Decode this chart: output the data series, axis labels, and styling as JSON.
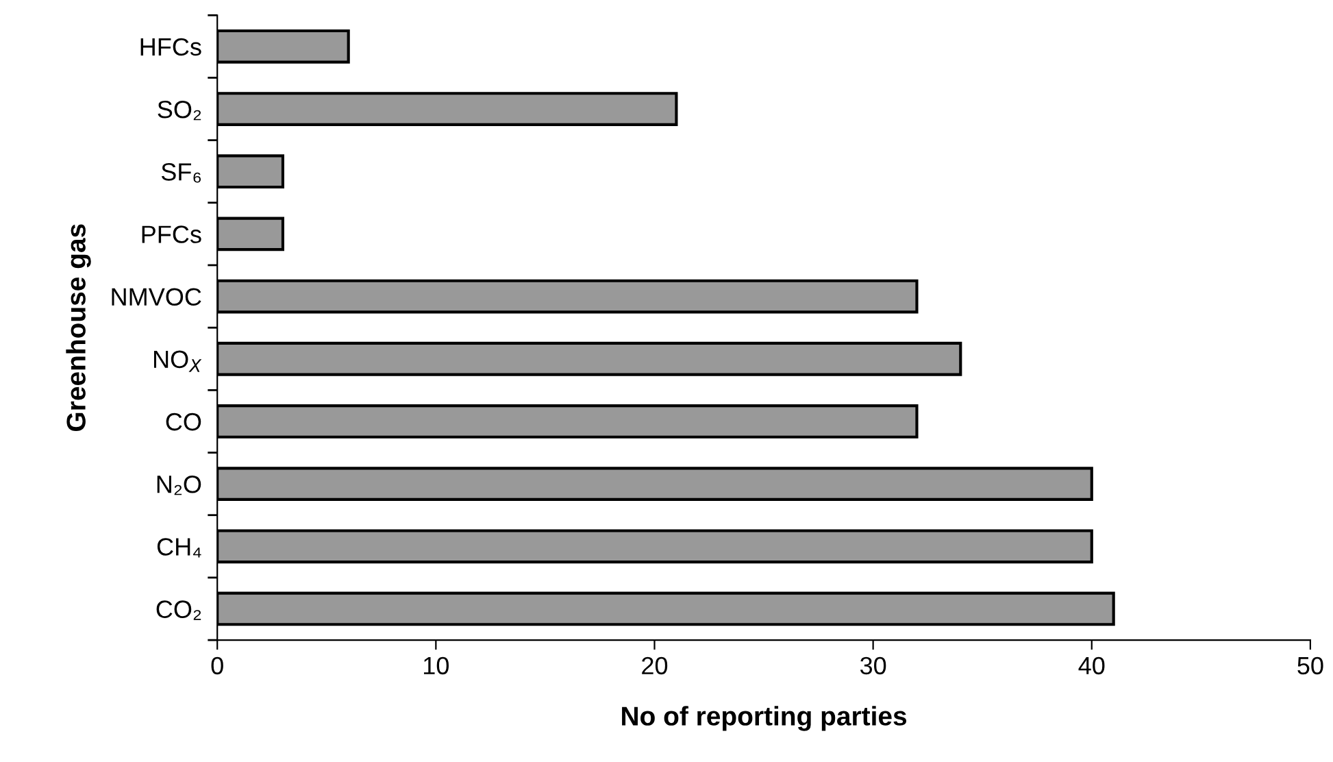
{
  "chart_data": {
    "type": "bar",
    "orientation": "horizontal",
    "xlabel": "No of reporting parties",
    "ylabel": "Greenhouse gas",
    "categories": [
      "HFCs",
      "SO₂",
      "SF₆",
      "PFCs",
      "NMVOC",
      "NO$_{X}$",
      "CO",
      "N₂O",
      "CH₄",
      "CO₂"
    ],
    "values": [
      6,
      21,
      3,
      3,
      32,
      34,
      32,
      40,
      40,
      41
    ],
    "color": "#999999",
    "xlim": [
      0,
      50
    ],
    "xticks": [
      0,
      10,
      20,
      30,
      40,
      50
    ],
    "grid": false,
    "legend": false
  }
}
